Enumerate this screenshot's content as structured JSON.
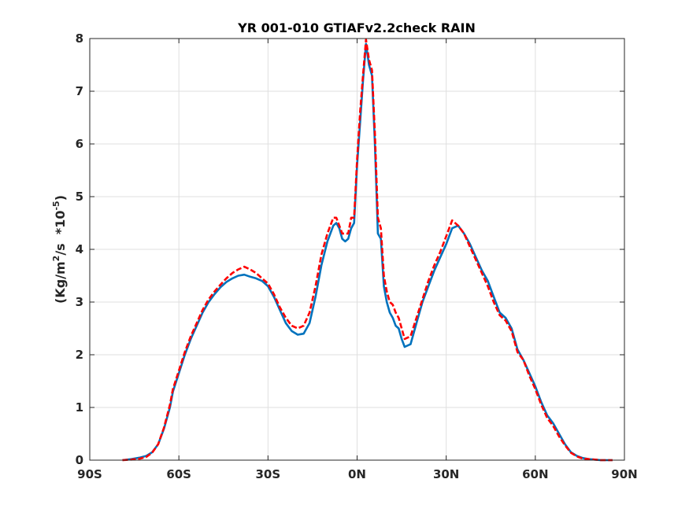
{
  "chart_data": {
    "type": "line",
    "title": "YR 001-010 GTIAFv2.2check RAIN",
    "xlabel": "",
    "ylabel": {
      "prefix": "(Kg/m",
      "sup1": "2",
      "mid": "/s  *10",
      "sup2": "-5",
      "suffix": ")"
    },
    "xlim": [
      -90,
      90
    ],
    "ylim": [
      0,
      8
    ],
    "grid": true,
    "x_ticks": [
      -90,
      -60,
      -30,
      0,
      30,
      60,
      90
    ],
    "x_tick_labels": [
      "90S",
      "60S",
      "30S",
      "0N",
      "30N",
      "60N",
      "90N"
    ],
    "y_ticks": [
      0,
      1,
      2,
      3,
      4,
      5,
      6,
      7,
      8
    ],
    "y_tick_labels": [
      "0",
      "1",
      "2",
      "3",
      "4",
      "5",
      "6",
      "7",
      "8"
    ],
    "series": [
      {
        "color": "#0072bd",
        "style": "solid",
        "x": [
          -79,
          -76,
          -73,
          -71,
          -69,
          -67,
          -65,
          -63,
          -62,
          -60,
          -58,
          -56,
          -54,
          -52,
          -50,
          -48,
          -46,
          -44,
          -42,
          -40,
          -38,
          -36,
          -34,
          -32,
          -30,
          -28,
          -26,
          -24,
          -22,
          -20,
          -18,
          -16,
          -14,
          -12,
          -10,
          -8,
          -7,
          -6,
          -5,
          -4,
          -3,
          -2,
          -1,
          0,
          1,
          2,
          3,
          4,
          5,
          6,
          7,
          8,
          9,
          10,
          11,
          12,
          13,
          14,
          15,
          16,
          18,
          20,
          22,
          24,
          26,
          28,
          30,
          32,
          34,
          36,
          38,
          40,
          42,
          44,
          46,
          48,
          50,
          52,
          54,
          56,
          58,
          60,
          62,
          64,
          66,
          68,
          70,
          72,
          74,
          76,
          78,
          80,
          82,
          84,
          86
        ],
        "y": [
          0.0,
          0.02,
          0.05,
          0.08,
          0.15,
          0.3,
          0.6,
          1.0,
          1.3,
          1.65,
          2.0,
          2.3,
          2.55,
          2.8,
          3.0,
          3.15,
          3.28,
          3.38,
          3.45,
          3.5,
          3.52,
          3.48,
          3.45,
          3.4,
          3.3,
          3.1,
          2.85,
          2.6,
          2.45,
          2.38,
          2.4,
          2.6,
          3.1,
          3.7,
          4.15,
          4.45,
          4.5,
          4.4,
          4.2,
          4.15,
          4.2,
          4.4,
          4.5,
          5.6,
          6.4,
          7.2,
          7.9,
          7.5,
          7.3,
          6.0,
          4.3,
          4.2,
          3.3,
          3.0,
          2.8,
          2.7,
          2.55,
          2.5,
          2.3,
          2.15,
          2.2,
          2.6,
          3.0,
          3.3,
          3.6,
          3.85,
          4.1,
          4.4,
          4.45,
          4.3,
          4.1,
          3.85,
          3.6,
          3.4,
          3.1,
          2.8,
          2.7,
          2.5,
          2.1,
          1.9,
          1.65,
          1.4,
          1.1,
          0.85,
          0.7,
          0.5,
          0.3,
          0.15,
          0.08,
          0.04,
          0.02,
          0.01,
          0.0,
          0.0,
          0.0
        ]
      },
      {
        "color": "#ff0000",
        "style": "dashed",
        "x": [
          -79,
          -76,
          -73,
          -71,
          -69,
          -67,
          -65,
          -63,
          -62,
          -60,
          -58,
          -56,
          -54,
          -52,
          -50,
          -48,
          -46,
          -44,
          -42,
          -40,
          -38,
          -36,
          -34,
          -32,
          -30,
          -28,
          -26,
          -24,
          -22,
          -20,
          -18,
          -16,
          -14,
          -12,
          -10,
          -8,
          -7,
          -6,
          -5,
          -4,
          -3,
          -2,
          -1,
          0,
          1,
          2,
          3,
          4,
          5,
          6,
          7,
          8,
          9,
          10,
          11,
          12,
          13,
          14,
          15,
          16,
          18,
          20,
          22,
          24,
          26,
          28,
          30,
          32,
          34,
          36,
          38,
          40,
          42,
          44,
          46,
          48,
          50,
          52,
          54,
          56,
          58,
          60,
          62,
          64,
          66,
          68,
          70,
          72,
          74,
          76,
          78,
          80,
          82,
          84,
          86
        ],
        "y": [
          0.0,
          0.01,
          0.03,
          0.06,
          0.14,
          0.3,
          0.62,
          1.05,
          1.35,
          1.7,
          2.05,
          2.35,
          2.6,
          2.85,
          3.05,
          3.2,
          3.33,
          3.45,
          3.55,
          3.62,
          3.67,
          3.62,
          3.55,
          3.45,
          3.35,
          3.15,
          2.9,
          2.7,
          2.55,
          2.5,
          2.55,
          2.8,
          3.3,
          3.9,
          4.3,
          4.6,
          4.6,
          4.45,
          4.3,
          4.3,
          4.3,
          4.6,
          4.6,
          5.7,
          6.6,
          7.3,
          7.98,
          7.6,
          7.4,
          6.2,
          4.6,
          4.4,
          3.5,
          3.2,
          3.0,
          2.95,
          2.8,
          2.7,
          2.5,
          2.3,
          2.35,
          2.7,
          3.05,
          3.4,
          3.7,
          3.95,
          4.25,
          4.55,
          4.45,
          4.3,
          4.05,
          3.8,
          3.55,
          3.3,
          3.0,
          2.75,
          2.65,
          2.45,
          2.05,
          1.9,
          1.6,
          1.35,
          1.05,
          0.8,
          0.65,
          0.45,
          0.28,
          0.14,
          0.07,
          0.03,
          0.02,
          0.01,
          0.0,
          0.0,
          0.0
        ]
      }
    ]
  }
}
